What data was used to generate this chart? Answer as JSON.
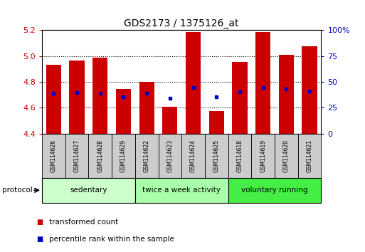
{
  "title": "GDS2173 / 1375126_at",
  "samples": [
    "GSM114626",
    "GSM114627",
    "GSM114628",
    "GSM114629",
    "GSM114622",
    "GSM114623",
    "GSM114624",
    "GSM114625",
    "GSM114618",
    "GSM114619",
    "GSM114620",
    "GSM114621"
  ],
  "red_values": [
    4.93,
    4.965,
    4.985,
    4.745,
    4.8,
    4.61,
    5.185,
    4.575,
    4.955,
    5.185,
    5.01,
    5.075
  ],
  "blue_values": [
    4.71,
    4.715,
    4.71,
    4.685,
    4.71,
    4.675,
    4.755,
    4.685,
    4.725,
    4.755,
    4.745,
    4.73
  ],
  "y_min": 4.4,
  "y_max": 5.2,
  "y_ticks": [
    4.4,
    4.6,
    4.8,
    5.0,
    5.2
  ],
  "right_y_ticks": [
    0,
    25,
    50,
    75,
    100
  ],
  "right_y_labels": [
    "0",
    "25",
    "50",
    "75",
    "100%"
  ],
  "groups": [
    {
      "label": "sedentary",
      "start": 0,
      "end": 4,
      "color": "#ccffcc"
    },
    {
      "label": "twice a week activity",
      "start": 4,
      "end": 8,
      "color": "#aaffaa"
    },
    {
      "label": "voluntary running",
      "start": 8,
      "end": 12,
      "color": "#44ee44"
    }
  ],
  "bar_bottom": 4.4,
  "bar_width": 0.65,
  "red_color": "#cc0000",
  "blue_color": "#0000cc",
  "legend_red": "transformed count",
  "legend_blue": "percentile rank within the sample",
  "protocol_label": "protocol",
  "tick_label_color_left": "#cc0000",
  "tick_label_color_right": "#0000cc",
  "sample_box_color": "#cccccc",
  "fig_width": 5.13,
  "fig_height": 3.54,
  "dpi": 100
}
